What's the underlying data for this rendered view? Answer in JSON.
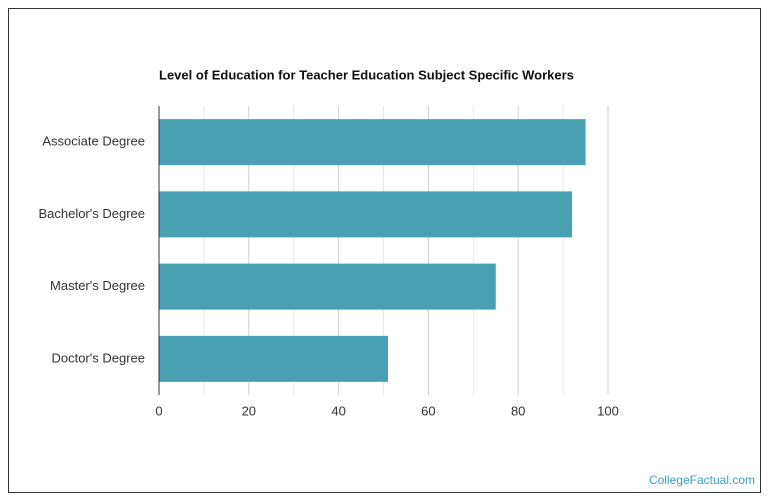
{
  "chart_data": {
    "type": "hbar",
    "title": "Level of Education for Teacher Education Subject Specific Workers",
    "categories": [
      "Associate Degree",
      "Bachelor's Degree",
      "Master's Degree",
      "Doctor's Degree"
    ],
    "values": [
      95,
      92,
      75,
      51
    ],
    "color": "#4aa0b3",
    "xlim": [
      0,
      100
    ],
    "xticks": [
      0,
      20,
      40,
      60,
      80,
      100
    ],
    "minor_xticks": [
      10,
      30,
      50,
      70,
      90
    ],
    "grid": true,
    "watermark": "CollegeFactual.com"
  }
}
